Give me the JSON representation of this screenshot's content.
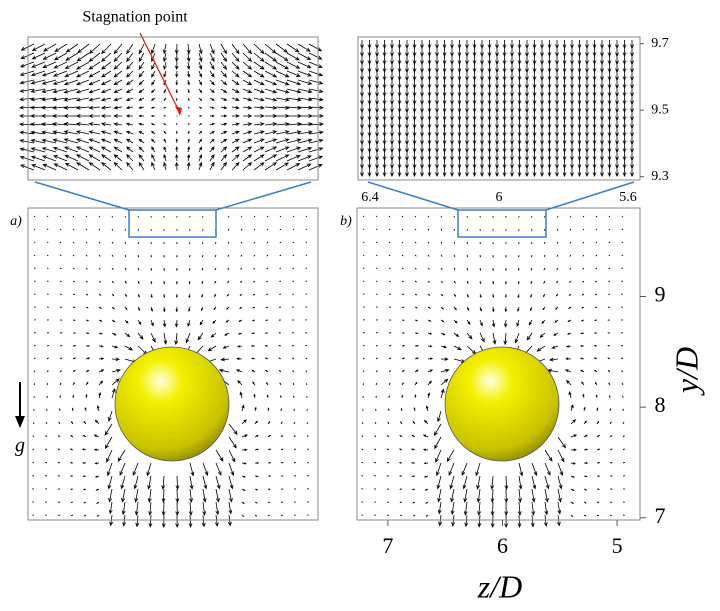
{
  "annotation": "Stagnation point",
  "panels": [
    {
      "label": "a)"
    },
    {
      "label": "b)"
    }
  ],
  "gravity_label": "g",
  "axes": {
    "y_label": "y/D",
    "x_label": "z/D",
    "ylim": [
      6.98,
      9.8
    ],
    "yticks": [
      7,
      8,
      9
    ],
    "xlim": [
      7.27,
      4.8
    ],
    "xticks": [
      7,
      6,
      5
    ]
  },
  "inset": {
    "ylim": [
      9.29,
      9.72
    ],
    "yticks": [
      9.7,
      9.5,
      9.3
    ],
    "xlim": [
      6.437,
      5.563
    ],
    "xticks": [
      6.4,
      6,
      5.6
    ]
  }
}
